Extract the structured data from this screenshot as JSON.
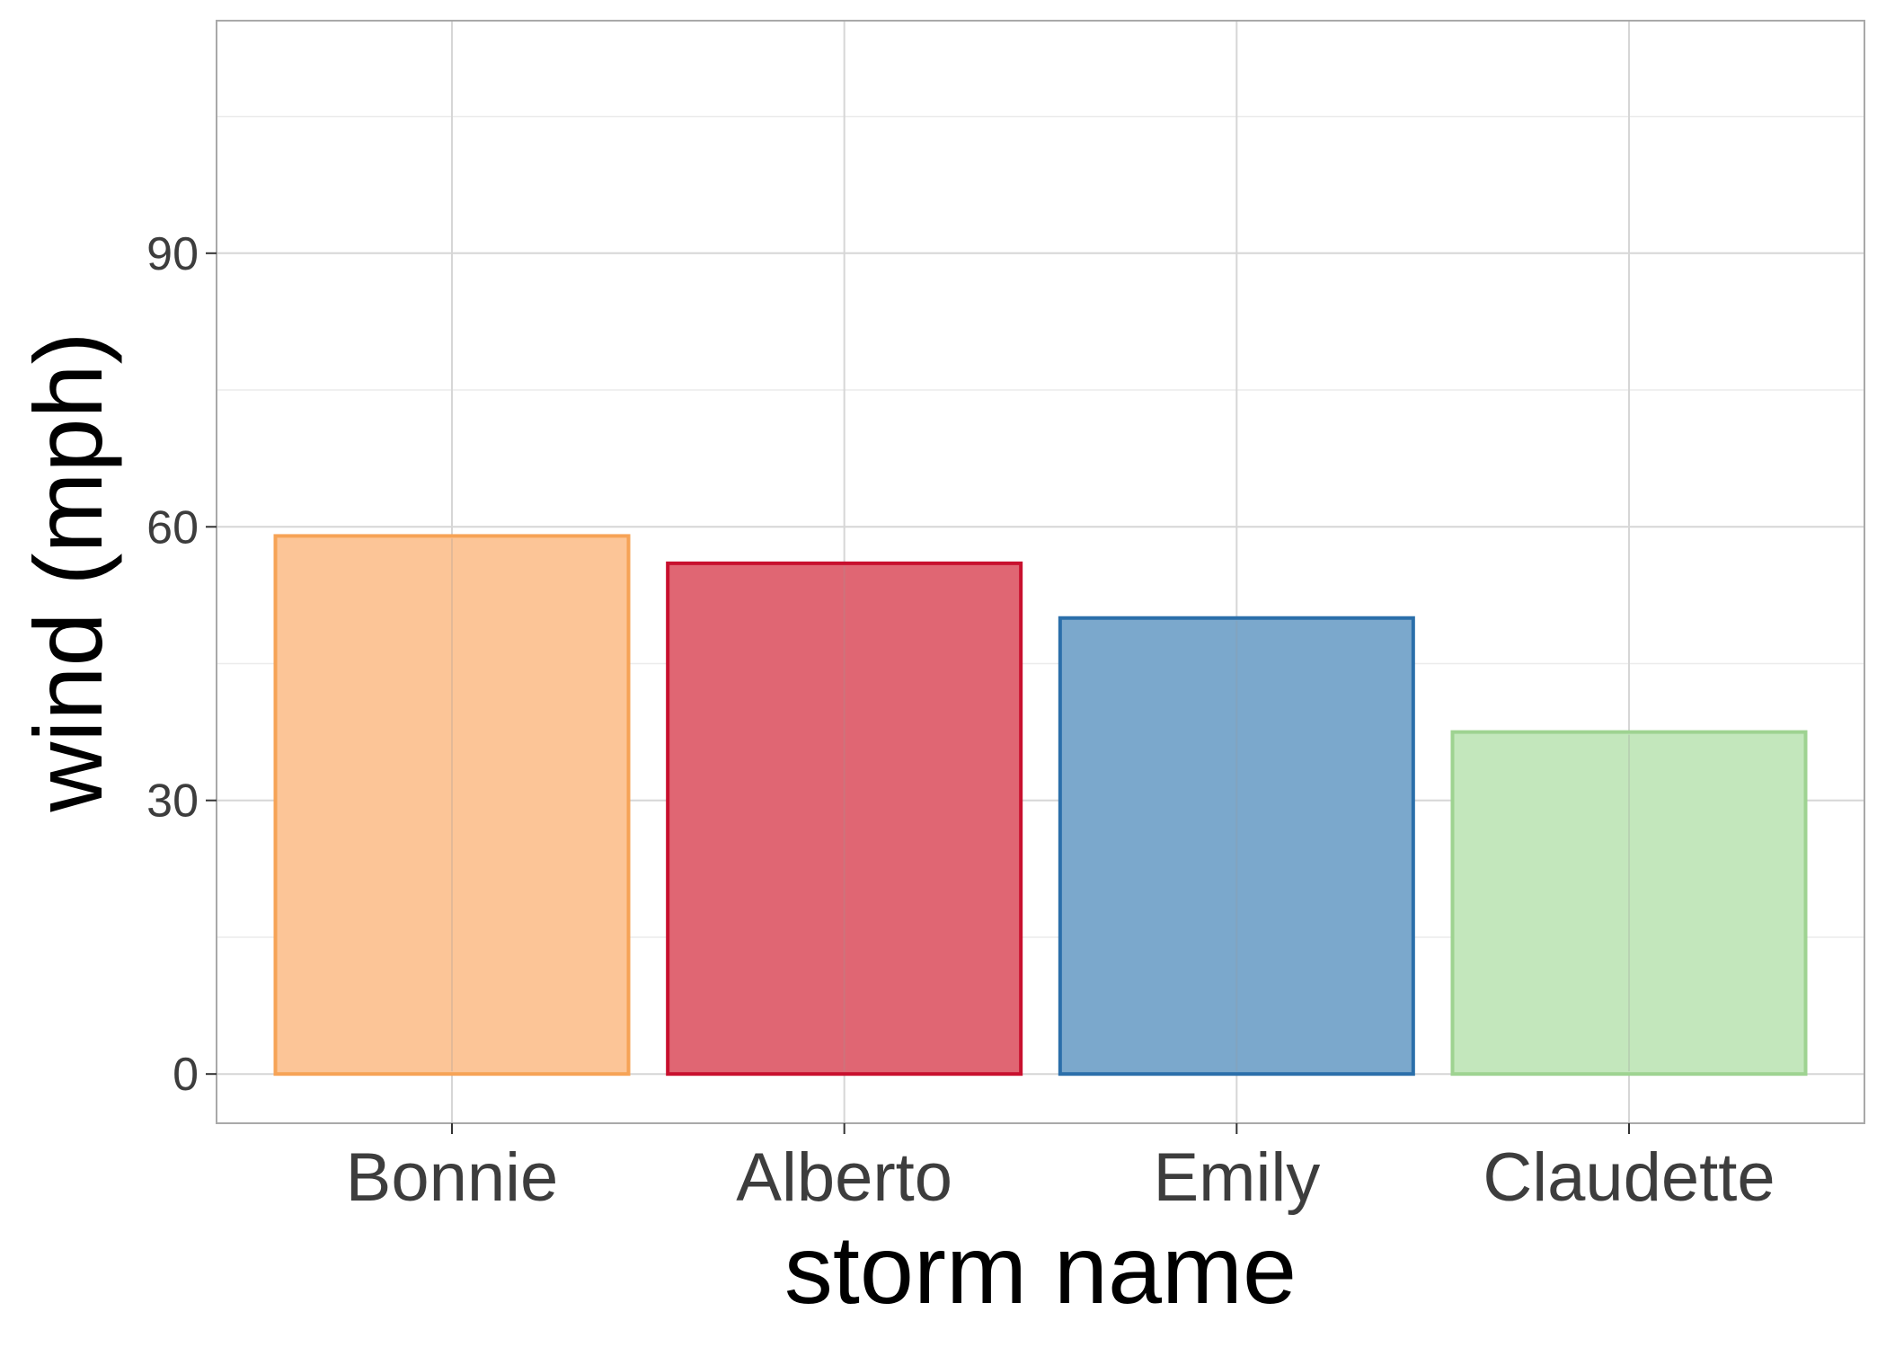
{
  "chart_data": {
    "type": "bar",
    "title": "",
    "xlabel": "storm name",
    "ylabel": "wind (mph)",
    "categories": [
      "Bonnie",
      "Alberto",
      "Emily",
      "Claudette"
    ],
    "values": [
      59,
      56,
      50,
      37.5
    ],
    "ylim": [
      -5.4,
      115.5
    ],
    "yticks": [
      0,
      30,
      60,
      90
    ],
    "grid": true,
    "legend": "none",
    "colors": {
      "fill": [
        "#FCC597",
        "#E06673",
        "#7BA8CC",
        "#C3E7BC"
      ],
      "stroke": [
        "#F6A356",
        "#C8102E",
        "#2B6FAA",
        "#9ED391"
      ]
    }
  }
}
